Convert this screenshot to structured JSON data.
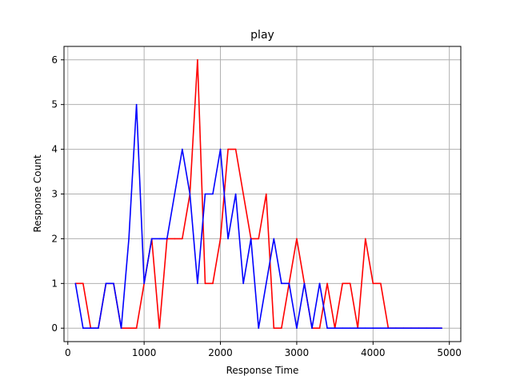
{
  "chart_data": {
    "type": "line",
    "title": "play",
    "xlabel": "Response Time",
    "ylabel": "Response Count",
    "xlim": [
      -50,
      5150
    ],
    "ylim": [
      -0.3,
      6.3
    ],
    "xticks": [
      0,
      1000,
      2000,
      3000,
      4000,
      5000
    ],
    "yticks": [
      0,
      1,
      2,
      3,
      4,
      5,
      6
    ],
    "grid": true,
    "x": [
      100,
      200,
      300,
      400,
      500,
      600,
      700,
      800,
      900,
      1000,
      1100,
      1200,
      1300,
      1400,
      1500,
      1600,
      1700,
      1800,
      1900,
      2000,
      2100,
      2200,
      2300,
      2400,
      2500,
      2600,
      2700,
      2800,
      2900,
      3000,
      3100,
      3200,
      3300,
      3400,
      3500,
      3600,
      3700,
      3800,
      3900,
      4000,
      4100,
      4200,
      4300,
      4400,
      4500,
      4600,
      4700,
      4800,
      4900
    ],
    "series": [
      {
        "color": "#ff0000",
        "values": [
          1,
          1,
          0,
          0,
          1,
          1,
          0,
          0,
          0,
          1,
          2,
          0,
          2,
          2,
          2,
          3,
          6,
          1,
          1,
          2,
          4,
          4,
          3,
          2,
          2,
          3,
          0,
          0,
          1,
          2,
          1,
          0,
          0,
          1,
          0,
          1,
          1,
          0,
          2,
          1,
          1,
          0,
          0,
          0,
          0,
          0,
          0,
          0,
          0
        ]
      },
      {
        "color": "#0000ff",
        "values": [
          1,
          0,
          0,
          0,
          1,
          1,
          0,
          2,
          5,
          1,
          2,
          2,
          2,
          3,
          4,
          3,
          1,
          3,
          3,
          4,
          2,
          3,
          1,
          2,
          0,
          1,
          2,
          1,
          1,
          0,
          1,
          0,
          1,
          0,
          0,
          0,
          0,
          0,
          0,
          0,
          0,
          0,
          0,
          0,
          0,
          0,
          0,
          0,
          0
        ]
      }
    ]
  }
}
